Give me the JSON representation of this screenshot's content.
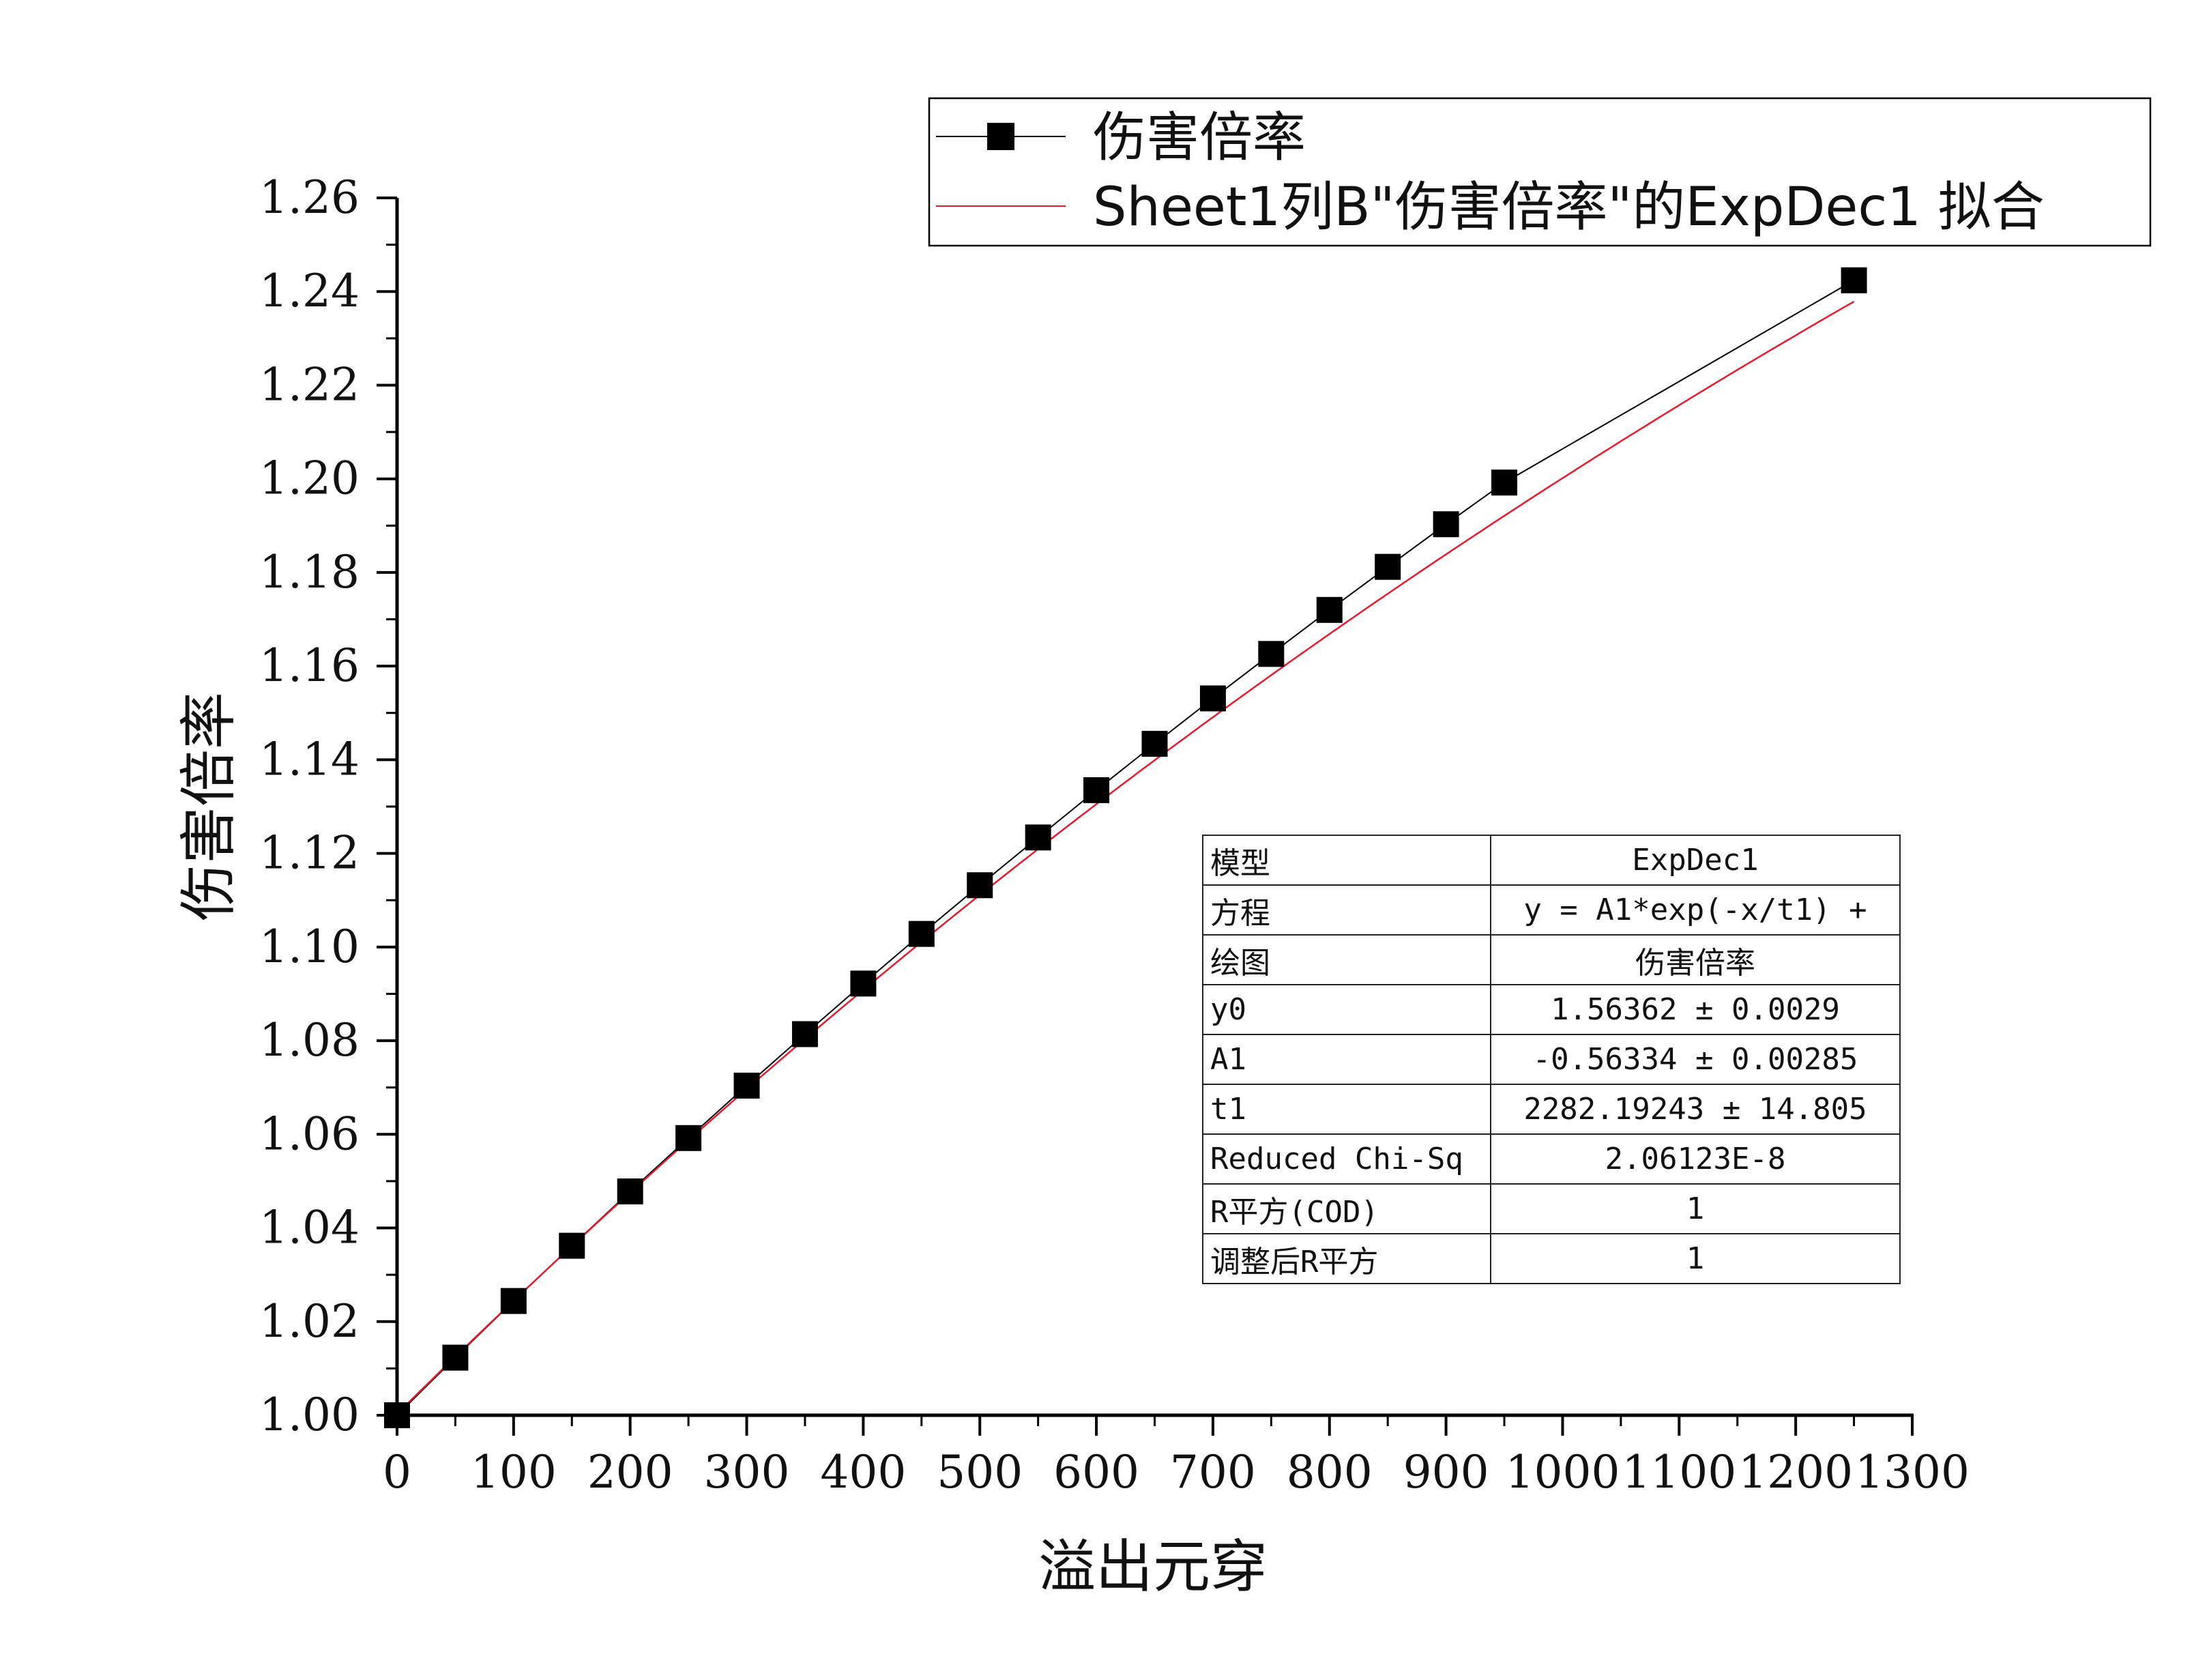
{
  "chart_data": {
    "type": "scatter",
    "xlabel": "溢出元穿",
    "ylabel": "伤害倍率",
    "xlim": [
      0,
      1300
    ],
    "ylim": [
      1.0,
      1.26
    ],
    "x_ticks": [
      "0",
      "100",
      "200",
      "300",
      "400",
      "500",
      "600",
      "700",
      "800",
      "900",
      "1000",
      "1100",
      "1200",
      "1300"
    ],
    "y_ticks": [
      "1.00",
      "1.02",
      "1.04",
      "1.06",
      "1.08",
      "1.10",
      "1.12",
      "1.14",
      "1.16",
      "1.18",
      "1.20",
      "1.22",
      "1.24",
      "1.26"
    ],
    "grid": false,
    "legend_position": "top-right",
    "series": [
      {
        "name": "伤害倍率",
        "marker": "square",
        "color": "#000000",
        "x": [
          0,
          50,
          100,
          150,
          200,
          250,
          300,
          350,
          400,
          450,
          500,
          550,
          600,
          650,
          700,
          750,
          800,
          850,
          900,
          950,
          1250
        ],
        "y": [
          1.0,
          1.0123,
          1.0244,
          1.0362,
          1.0478,
          1.0592,
          1.0704,
          1.0814,
          1.0922,
          1.1028,
          1.1132,
          1.1234,
          1.1335,
          1.1434,
          1.1531,
          1.1626,
          1.172,
          1.1812,
          1.1903,
          1.1992,
          1.2424
        ]
      },
      {
        "name": "Sheet1列B\"伤害倍率\"的ExpDec1 拟合",
        "type": "fit-line",
        "color": "#e8192c",
        "y0": 1.56362,
        "A1": -0.56334,
        "t1": 2282.19243,
        "x_range": [
          0,
          1250
        ]
      }
    ],
    "fit_table": [
      {
        "label": "模型",
        "value": "ExpDec1"
      },
      {
        "label": "方程",
        "value": "y = A1*exp(-x/t1) +"
      },
      {
        "label": "绘图",
        "value": "伤害倍率"
      },
      {
        "label": "y0",
        "value": "1.56362 ± 0.0029"
      },
      {
        "label": "A1",
        "value": "-0.56334 ± 0.00285"
      },
      {
        "label": "t1",
        "value": "2282.19243 ± 14.805"
      },
      {
        "label": "Reduced Chi-Sq",
        "value": "2.06123E-8"
      },
      {
        "label": "R平方(COD)",
        "value": "1"
      },
      {
        "label": "调整后R平方",
        "value": "1"
      }
    ]
  }
}
